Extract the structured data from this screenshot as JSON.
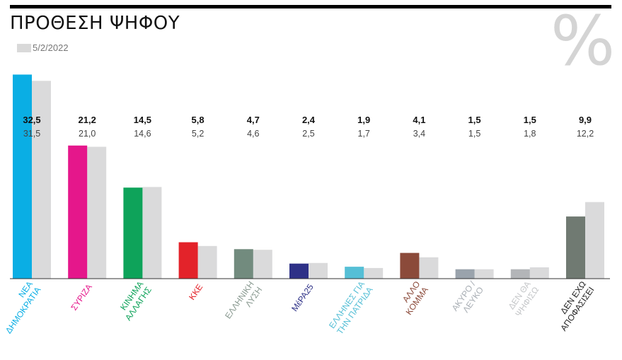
{
  "header": {
    "title": "ΠΡΟΘΕΣΗ ΨΗΦΟΥ",
    "legend_label": "5/2/2022",
    "unit_symbol": "%"
  },
  "colors": {
    "previous": "#dadadb",
    "axis": "#333333"
  },
  "chart_data": {
    "type": "bar",
    "title": "ΠΡΟΘΕΣΗ ΨΗΦΟΥ",
    "xlabel": "",
    "ylabel": "",
    "ylim": [
      0,
      33
    ],
    "grid": false,
    "legend": "top-left",
    "categories": [
      [
        "ΝΕΑ",
        "ΔΗΜΟΚΡΑΤΙΑ"
      ],
      [
        "ΣΥΡΙΖΑ"
      ],
      [
        "ΚΙΝΗΜΑ",
        "ΑΛΛΑΓΗΣ"
      ],
      [
        "ΚΚΕ"
      ],
      [
        "ΕΛΛΗΝΙΚΗ",
        "ΛΥΣΗ"
      ],
      [
        "ΜέΡΑ25"
      ],
      [
        "ΕΛΛΗΝΕΣ ΓΙΑ",
        "ΤΗΝ ΠΑΤΡΙΔΑ"
      ],
      [
        "ΑΛΛΟ",
        "ΚΟΜΜΑ"
      ],
      [
        "ΑΚΥΡΟ /",
        "ΛΕΥΚΟ"
      ],
      [
        "ΔΕΝ ΘΑ",
        "ΨΗΦΙΣΩ"
      ],
      [
        "ΔΕΝ ΕΧΩ",
        "ΑΠΟΦΑΣΙΣΕΙ"
      ]
    ],
    "category_colors": [
      "#0aaee4",
      "#e5178b",
      "#0ea35a",
      "#e3232a",
      "#728b7e",
      "#2e3187",
      "#55bfd6",
      "#8b4a3a",
      "#9aa3ac",
      "#b3b5b8",
      "#707a72"
    ],
    "label_colors": [
      "#0aaee4",
      "#e5178b",
      "#0ea35a",
      "#e3232a",
      "#8a9a91",
      "#2e3187",
      "#55bfd6",
      "#8b4a3a",
      "#a8aeb4",
      "#c4c6c8",
      "#222222"
    ],
    "series": [
      {
        "values": [
          32.5,
          21.2,
          14.5,
          5.8,
          4.7,
          2.4,
          1.9,
          4.1,
          1.5,
          1.5,
          9.9
        ],
        "labels": [
          "32,5",
          "21,2",
          "14,5",
          "5,8",
          "4,7",
          "2,4",
          "1,9",
          "4,1",
          "1,5",
          "1,5",
          "9,9"
        ]
      },
      {
        "name": "5/2/2022",
        "values": [
          31.5,
          21.0,
          14.6,
          5.2,
          4.6,
          2.5,
          1.7,
          3.4,
          1.5,
          1.8,
          12.2
        ],
        "labels": [
          "31,5",
          "21,0",
          "14,6",
          "5,2",
          "4,6",
          "2,5",
          "1,7",
          "3,4",
          "1,5",
          "1,8",
          "12,2"
        ]
      }
    ]
  }
}
